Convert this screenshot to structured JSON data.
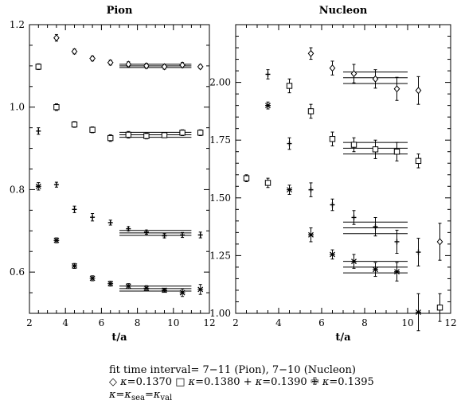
{
  "chart_data": [
    {
      "type": "scatter",
      "title": "Pion",
      "xlabel": "t/a",
      "ylabel": "",
      "xlim": [
        2,
        12
      ],
      "ylim": [
        0.5,
        1.2
      ],
      "xticks": [
        2,
        4,
        6,
        8,
        10,
        12
      ],
      "yticks": [
        0.6,
        0.8,
        1.0,
        1.2
      ],
      "ytick_labels": [
        "0.6",
        "0.8",
        "1.0",
        "1.2"
      ],
      "fit_range": [
        7,
        11
      ],
      "series": [
        {
          "name": "κ=0.1370",
          "marker": "diamond",
          "x": [
            3.5,
            4.5,
            5.5,
            6.5,
            7.5,
            8.5,
            9.5,
            10.5,
            11.5
          ],
          "y": [
            1.168,
            1.135,
            1.118,
            1.108,
            1.104,
            1.1,
            1.098,
            1.102,
            1.098
          ],
          "err": [
            0.008,
            0.006,
            0.006,
            0.006,
            0.006,
            0.006,
            0.006,
            0.006,
            0.005
          ],
          "fit": [
            1.1,
            1.104,
            1.096
          ]
        },
        {
          "name": "κ=0.1380",
          "marker": "square",
          "x": [
            2.5,
            3.5,
            4.5,
            5.5,
            6.5,
            7.5,
            8.5,
            9.5,
            10.5,
            11.5
          ],
          "y": [
            1.098,
            1.0,
            0.958,
            0.945,
            0.925,
            0.933,
            0.93,
            0.932,
            0.938,
            0.938
          ],
          "err": [
            0.007,
            0.008,
            0.007,
            0.007,
            0.008,
            0.008,
            0.007,
            0.006,
            0.007,
            0.007
          ],
          "fit": [
            0.933,
            0.939,
            0.927
          ]
        },
        {
          "name": "κ=0.1390",
          "marker": "plus",
          "x": [
            2.5,
            3.5,
            4.5,
            5.5,
            6.5,
            7.5,
            8.5,
            9.5,
            10.5,
            11.5
          ],
          "y": [
            0.942,
            0.812,
            0.752,
            0.733,
            0.72,
            0.705,
            0.697,
            0.688,
            0.69,
            0.69
          ],
          "err": [
            0.008,
            0.006,
            0.008,
            0.009,
            0.006,
            0.005,
            0.005,
            0.005,
            0.006,
            0.007
          ],
          "fit": [
            0.695,
            0.701,
            0.689
          ]
        },
        {
          "name": "κ=0.1395",
          "marker": "star",
          "x": [
            2.5,
            3.5,
            4.5,
            5.5,
            6.5,
            7.5,
            8.5,
            9.5,
            10.5,
            11.5
          ],
          "y": [
            0.808,
            0.677,
            0.615,
            0.585,
            0.572,
            0.566,
            0.561,
            0.556,
            0.55,
            0.558
          ],
          "err": [
            0.009,
            0.006,
            0.006,
            0.006,
            0.006,
            0.006,
            0.006,
            0.005,
            0.009,
            0.012
          ],
          "fit": [
            0.56,
            0.566,
            0.554
          ]
        }
      ]
    },
    {
      "type": "scatter",
      "title": "Nucleon",
      "xlabel": "t/a",
      "ylabel": "",
      "xlim": [
        2,
        12
      ],
      "ylim": [
        1.0,
        2.25
      ],
      "xticks": [
        2,
        4,
        6,
        8,
        10,
        12
      ],
      "yticks": [
        1.0,
        1.25,
        1.5,
        1.75,
        2.0
      ],
      "ytick_labels": [
        "1.00",
        "1.25",
        "1.50",
        "1.75",
        "2.00"
      ],
      "fit_range": [
        7,
        10
      ],
      "series": [
        {
          "name": "κ=0.1370",
          "marker": "diamond",
          "x": [
            5.5,
            6.5,
            7.5,
            8.5,
            9.5,
            10.5,
            11.5
          ],
          "y": [
            2.125,
            2.062,
            2.038,
            2.015,
            1.972,
            1.965,
            1.31
          ],
          "err": [
            0.025,
            0.03,
            0.04,
            0.04,
            0.05,
            0.06,
            0.08
          ],
          "fit": [
            2.02,
            2.045,
            1.995
          ]
        },
        {
          "name": "κ=0.1380",
          "marker": "square",
          "x": [
            2.5,
            3.5,
            4.5,
            5.5,
            6.5,
            7.5,
            8.5,
            9.5,
            10.5,
            11.5
          ],
          "y": [
            1.585,
            1.565,
            1.985,
            1.875,
            1.755,
            1.73,
            1.71,
            1.7,
            1.66,
            1.025
          ],
          "err": [
            0.015,
            0.02,
            0.03,
            0.03,
            0.03,
            0.03,
            0.04,
            0.04,
            0.03,
            0.06
          ],
          "fit": [
            1.715,
            1.74,
            1.69
          ]
        },
        {
          "name": "κ=0.1390",
          "marker": "plus",
          "x": [
            3.5,
            4.5,
            5.5,
            6.5,
            7.5,
            8.5,
            9.5,
            10.5
          ],
          "y": [
            2.035,
            1.735,
            1.535,
            1.47,
            1.415,
            1.375,
            1.31,
            1.265
          ],
          "err": [
            0.02,
            0.025,
            0.03,
            0.025,
            0.03,
            0.04,
            0.05,
            0.06
          ],
          "fit": [
            1.37,
            1.395,
            1.345
          ]
        },
        {
          "name": "κ=0.1395",
          "marker": "star",
          "x": [
            3.5,
            4.5,
            5.5,
            6.5,
            7.5,
            8.5,
            9.5,
            10.5
          ],
          "y": [
            1.9,
            1.535,
            1.34,
            1.255,
            1.225,
            1.19,
            1.18,
            1.005
          ],
          "err": [
            0.015,
            0.02,
            0.03,
            0.02,
            0.03,
            0.03,
            0.04,
            0.08
          ],
          "fit": [
            1.2,
            1.225,
            1.175
          ]
        }
      ]
    }
  ],
  "caption": {
    "line1": "fit time interval= 7−11 (Pion), 7−10 (Nucleon)",
    "legend": [
      {
        "symbol": "◇",
        "label": "=0.1370"
      },
      {
        "symbol": "□",
        "label": "=0.1380"
      },
      {
        "symbol": "+",
        "label": "=0.1390"
      },
      {
        "symbol": "✙",
        "label": "=0.1395"
      }
    ],
    "kappa": "κ",
    "note_parts": [
      "κ=κ",
      "sea",
      "=κ",
      "val"
    ]
  }
}
